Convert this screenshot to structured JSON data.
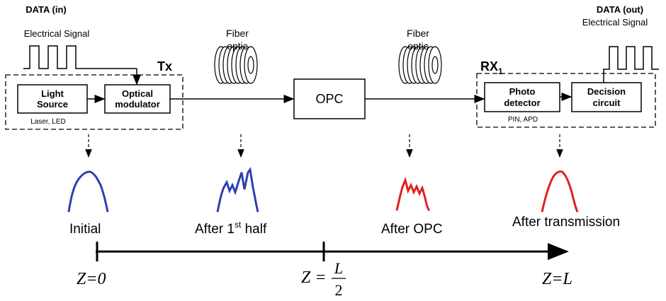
{
  "transmitter": {
    "input_title": "DATA (in)",
    "input_subtitle": "Electrical Signal",
    "label": "Tx",
    "source_lines": [
      "Light",
      "Source"
    ],
    "source_note": "Laser, LED",
    "modulator_lines": [
      "Optical",
      "modulator"
    ]
  },
  "fibers": [
    {
      "lines": [
        "Fiber",
        "optic"
      ]
    },
    {
      "lines": [
        "Fiber",
        "optic"
      ]
    }
  ],
  "opc": "OPC",
  "receiver": {
    "label": "RX",
    "label_sub": "1",
    "detector_lines": [
      "Photo",
      "detector"
    ],
    "detector_note": "PIN, APD",
    "decision_lines": [
      "Decision",
      "circuit"
    ],
    "output_title": "DATA (out)",
    "output_subtitle": "Electrical Signal"
  },
  "stages": [
    {
      "label": "Initial"
    },
    {
      "label": "After 1",
      "sup": "st",
      "rest": " half"
    },
    {
      "label": "After OPC"
    },
    {
      "label": "After transmission"
    }
  ],
  "axis": {
    "start": "Z=0",
    "mid_prefix": "Z =",
    "mid_numerator": "L",
    "mid_denominator": "2",
    "end": "Z=L"
  }
}
